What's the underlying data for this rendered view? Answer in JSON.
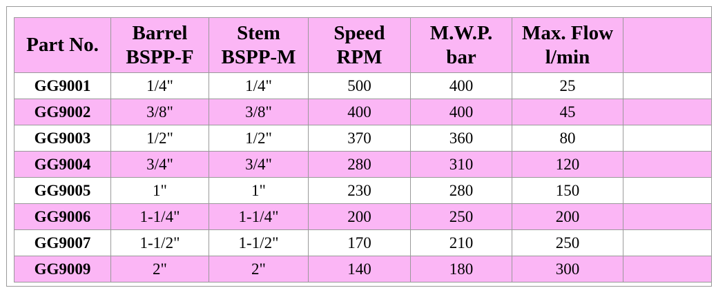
{
  "table": {
    "header": [
      [
        "Part No."
      ],
      [
        "Barrel",
        "BSPP-F"
      ],
      [
        "Stem",
        "BSPP-M"
      ],
      [
        "Speed",
        "RPM"
      ],
      [
        "M.W.P.",
        "bar"
      ],
      [
        "Max. Flow",
        "l/min"
      ]
    ],
    "rows": [
      [
        "GG9001",
        "1/4\"",
        "1/4\"",
        "500",
        "400",
        "25"
      ],
      [
        "GG9002",
        "3/8\"",
        "3/8\"",
        "400",
        "400",
        "45"
      ],
      [
        "GG9003",
        "1/2\"",
        "1/2\"",
        "370",
        "360",
        "80"
      ],
      [
        "GG9004",
        "3/4\"",
        "3/4\"",
        "280",
        "310",
        "120"
      ],
      [
        "GG9005",
        "1\"",
        "1\"",
        "230",
        "280",
        "150"
      ],
      [
        "GG9006",
        "1-1/4\"",
        "1-1/4\"",
        "200",
        "250",
        "200"
      ],
      [
        "GG9007",
        "1-1/2\"",
        "1-1/2\"",
        "170",
        "210",
        "250"
      ],
      [
        "GG9009",
        "2\"",
        "2\"",
        "140",
        "180",
        "300"
      ]
    ]
  }
}
